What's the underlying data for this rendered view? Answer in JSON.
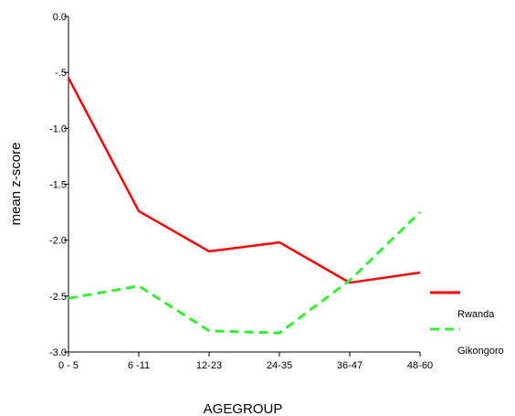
{
  "chart_data": {
    "type": "line",
    "xlabel": "AGEGROUP",
    "ylabel": "mean z-score",
    "categories": [
      "0 - 5",
      "6 -11",
      "12-23",
      "24-35",
      "36-47",
      "48-60"
    ],
    "ylim": [
      -3.0,
      0.0
    ],
    "yticks": [
      "0.0",
      "-.5",
      "-1.0",
      "-1.5",
      "-2.0",
      "-2.5",
      "-3.0"
    ],
    "ytick_values": [
      0.0,
      -0.5,
      -1.0,
      -1.5,
      -2.0,
      -2.5,
      -3.0
    ],
    "grid": false,
    "legend_position": "right",
    "series": [
      {
        "name": "Rwanda",
        "color": "#ff0000",
        "style": "solid",
        "values": [
          -0.55,
          -1.74,
          -2.1,
          -2.02,
          -2.38,
          -2.29
        ]
      },
      {
        "name": "Gikongoro",
        "color": "#33ee33",
        "style": "dashed",
        "values": [
          -2.52,
          -2.41,
          -2.81,
          -2.83,
          -2.36,
          -1.75
        ]
      }
    ]
  }
}
